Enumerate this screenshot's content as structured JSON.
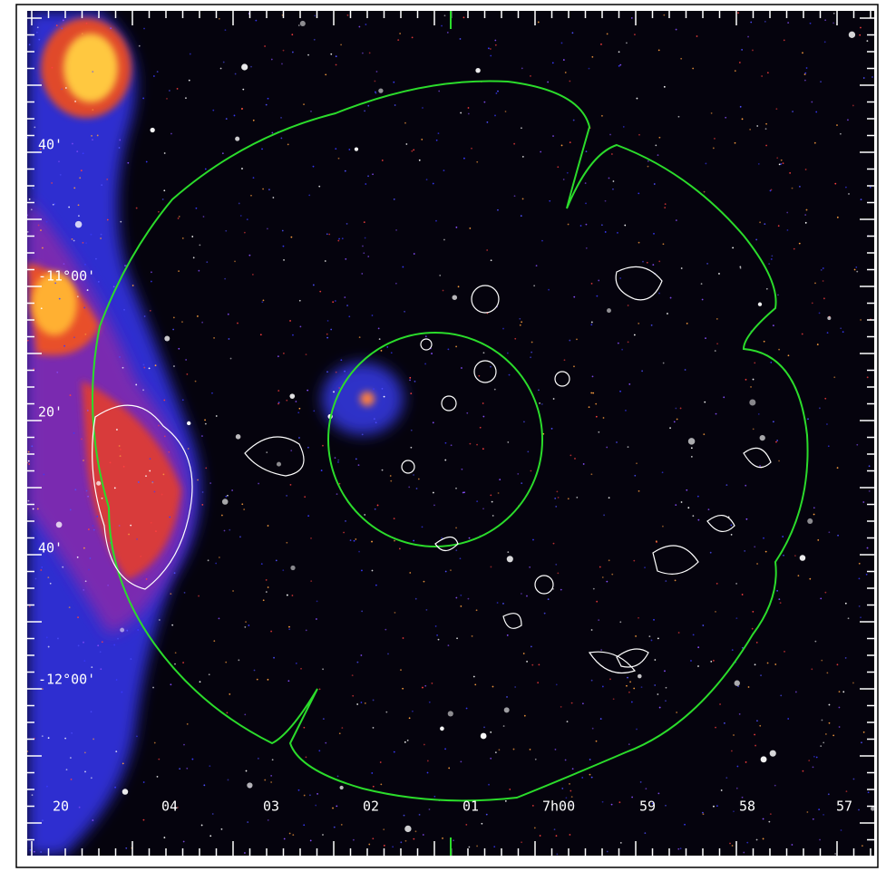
{
  "axes": {
    "y_labels": [
      "40'",
      "-11°00'",
      "20'",
      "40'",
      "-12°00'"
    ],
    "x_labels": [
      "20",
      "04",
      "03",
      "02",
      "01",
      "7h00",
      "59",
      "58",
      "57"
    ]
  }
}
